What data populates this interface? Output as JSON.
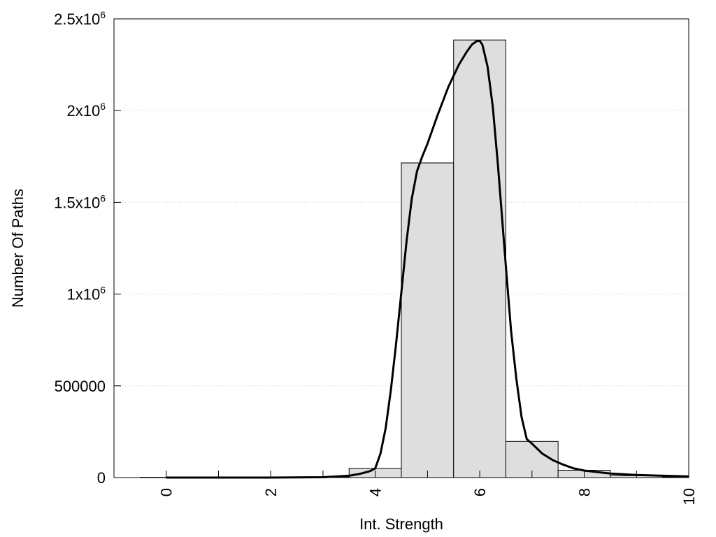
{
  "chart_data": {
    "type": "bar",
    "title": "",
    "xlabel": "Int. Strength",
    "ylabel": "Number Of Paths",
    "xlim": [
      -1,
      10
    ],
    "ylim": [
      0,
      2500000
    ],
    "grid": "horizontal dotted",
    "bar_color": "#dedede",
    "curve_color": "#000000",
    "x_ticks": [
      {
        "value": 0,
        "label": "0"
      },
      {
        "value": 2,
        "label": "2"
      },
      {
        "value": 4,
        "label": "4"
      },
      {
        "value": 6,
        "label": "6"
      },
      {
        "value": 8,
        "label": "8"
      },
      {
        "value": 10,
        "label": "10"
      }
    ],
    "y_ticks": [
      {
        "value": 0,
        "base": "0",
        "exp": ""
      },
      {
        "value": 500000,
        "base": "500000",
        "exp": ""
      },
      {
        "value": 1000000,
        "base": "1x10",
        "exp": "6"
      },
      {
        "value": 1500000,
        "base": "1.5x10",
        "exp": "6"
      },
      {
        "value": 2000000,
        "base": "2x10",
        "exp": "6"
      },
      {
        "value": 2500000,
        "base": "2.5x10",
        "exp": "6"
      }
    ],
    "bars": [
      {
        "x": 0,
        "value": 1500
      },
      {
        "x": 1,
        "value": 1500
      },
      {
        "x": 2,
        "value": 2000
      },
      {
        "x": 3,
        "value": 3000
      },
      {
        "x": 4,
        "value": 50000
      },
      {
        "x": 5,
        "value": 1715000
      },
      {
        "x": 6,
        "value": 2385000
      },
      {
        "x": 7,
        "value": 197000
      },
      {
        "x": 8,
        "value": 40000
      },
      {
        "x": 9,
        "value": 10000
      },
      {
        "x": 10,
        "value": 3000
      }
    ],
    "bar_width": 1,
    "fit_curve": {
      "x": [
        0,
        1,
        2,
        3,
        3.5,
        3.7,
        3.9,
        4.0,
        4.1,
        4.2,
        4.3,
        4.4,
        4.5,
        4.6,
        4.7,
        4.8,
        4.9,
        5.0,
        5.2,
        5.4,
        5.6,
        5.75,
        5.85,
        5.95,
        6.0,
        6.05,
        6.15,
        6.25,
        6.35,
        6.5,
        6.6,
        6.7,
        6.8,
        6.9,
        7.0,
        7.2,
        7.4,
        7.6,
        7.8,
        8.0,
        8.5,
        9.0,
        9.5,
        10.0
      ],
      "y": [
        0,
        0,
        0,
        2000,
        10000,
        20000,
        35000,
        50000,
        130000,
        270000,
        480000,
        730000,
        1010000,
        1290000,
        1520000,
        1670000,
        1750000,
        1820000,
        1980000,
        2130000,
        2250000,
        2320000,
        2360000,
        2380000,
        2380000,
        2360000,
        2240000,
        2020000,
        1700000,
        1150000,
        800000,
        540000,
        330000,
        210000,
        185000,
        130000,
        95000,
        70000,
        50000,
        38000,
        22000,
        14000,
        10000,
        6000
      ]
    }
  }
}
